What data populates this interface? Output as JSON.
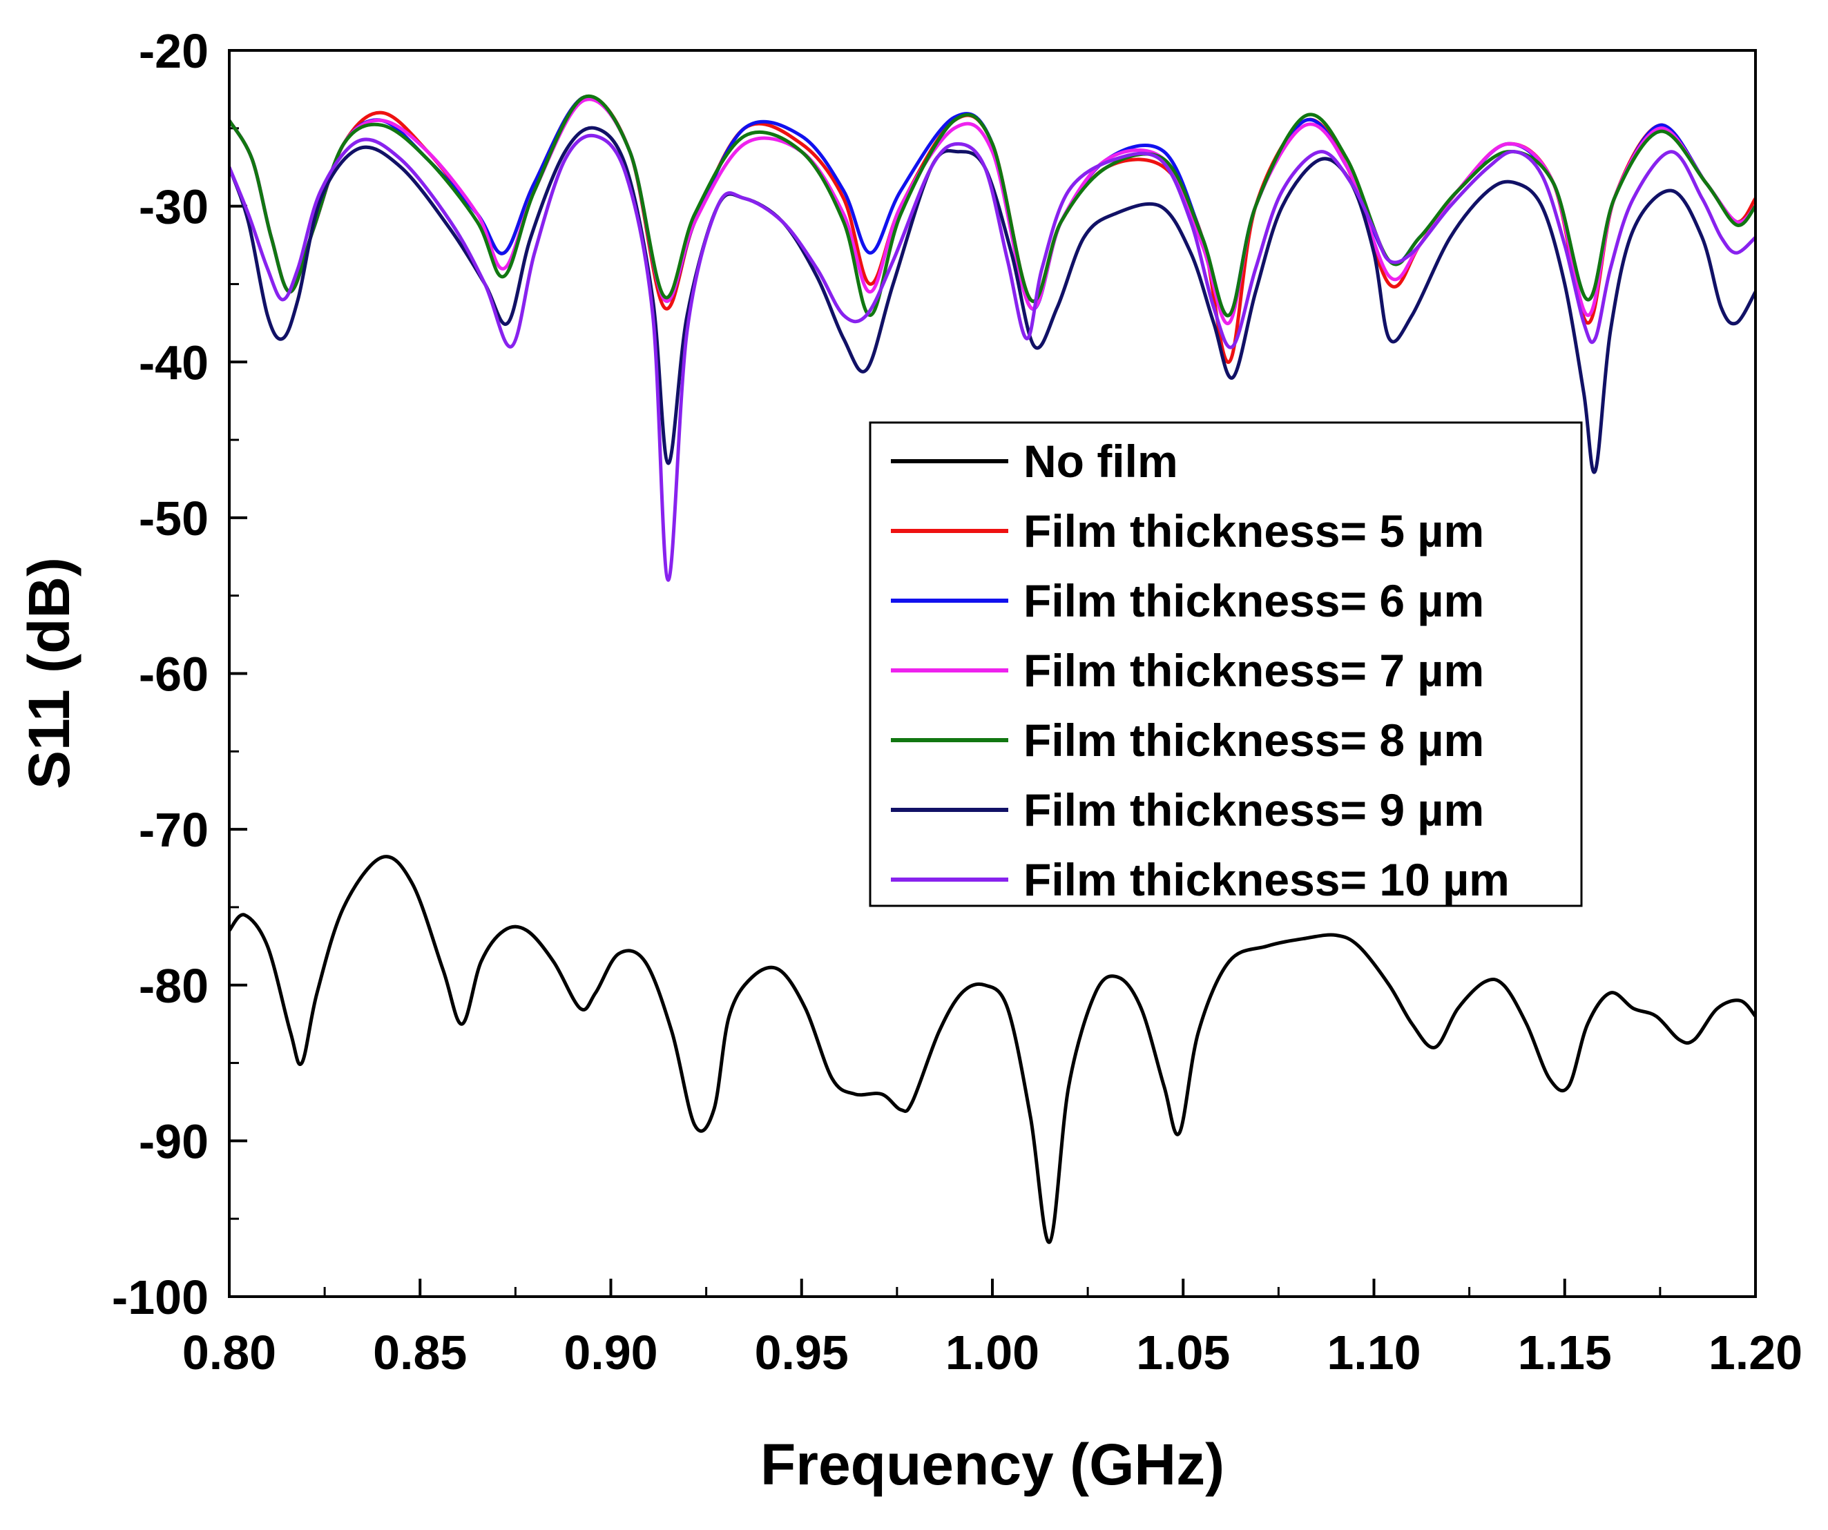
{
  "chart_data": {
    "type": "line",
    "title": "",
    "xlabel": "Frequency (GHz)",
    "ylabel": "S11 (dB)",
    "xlim": [
      0.8,
      1.2
    ],
    "ylim": [
      -100,
      -20
    ],
    "x_ticks": [
      0.8,
      0.85,
      0.9,
      0.95,
      1.0,
      1.05,
      1.1,
      1.15,
      1.2
    ],
    "x_tick_labels": [
      "0.80",
      "0.85",
      "0.90",
      "0.95",
      "1.00",
      "1.05",
      "1.10",
      "1.15",
      "1.20"
    ],
    "y_ticks": [
      -100,
      -90,
      -80,
      -70,
      -60,
      -50,
      -40,
      -30,
      -20
    ],
    "y_tick_labels": [
      "-100",
      "-90",
      "-80",
      "-70",
      "-60",
      "-50",
      "-40",
      "-30",
      "-20"
    ],
    "legend_position": "center-right",
    "series": [
      {
        "name": "No film",
        "color": "#000000",
        "x": [
          0.8,
          0.804,
          0.81,
          0.816,
          0.819,
          0.823,
          0.83,
          0.84,
          0.848,
          0.856,
          0.861,
          0.866,
          0.872,
          0.878,
          0.885,
          0.892,
          0.896,
          0.902,
          0.909,
          0.916,
          0.922,
          0.927,
          0.931,
          0.937,
          0.944,
          0.951,
          0.958,
          0.964,
          0.971,
          0.976,
          0.979,
          0.986,
          0.992,
          0.998,
          1.004,
          1.01,
          1.015,
          1.02,
          1.027,
          1.033,
          1.039,
          1.045,
          1.049,
          1.054,
          1.062,
          1.072,
          1.082,
          1.09,
          1.096,
          1.104,
          1.11,
          1.116,
          1.122,
          1.129,
          1.134,
          1.14,
          1.146,
          1.151,
          1.156,
          1.162,
          1.168,
          1.174,
          1.18,
          1.184,
          1.19,
          1.196,
          1.2
        ],
        "values": [
          -76.5,
          -75.5,
          -77.5,
          -83.0,
          -85.0,
          -80.5,
          -75.0,
          -71.8,
          -73.5,
          -79.0,
          -82.5,
          -78.5,
          -76.5,
          -76.5,
          -78.5,
          -81.5,
          -80.5,
          -78.0,
          -78.5,
          -83.0,
          -89.0,
          -88.0,
          -82.0,
          -79.5,
          -79.0,
          -81.5,
          -86.0,
          -87.0,
          -87.0,
          -88.0,
          -87.5,
          -83.0,
          -80.5,
          -80.0,
          -81.5,
          -88.5,
          -96.5,
          -86.5,
          -80.5,
          -79.5,
          -81.5,
          -86.5,
          -89.5,
          -83.0,
          -78.5,
          -77.5,
          -77.0,
          -76.8,
          -77.5,
          -80.0,
          -82.5,
          -84.0,
          -81.5,
          -79.8,
          -80.0,
          -82.5,
          -86.0,
          -86.5,
          -82.5,
          -80.5,
          -81.5,
          -82.0,
          -83.5,
          -83.5,
          -81.5,
          -81.0,
          -82.0
        ]
      },
      {
        "name": "Film thickness= 5 µm",
        "color": "#ee1111",
        "x": [
          0.8,
          0.806,
          0.811,
          0.816,
          0.822,
          0.83,
          0.84,
          0.852,
          0.865,
          0.872,
          0.88,
          0.893,
          0.905,
          0.914,
          0.922,
          0.935,
          0.95,
          0.961,
          0.968,
          0.976,
          0.99,
          1.0,
          1.01,
          1.018,
          1.03,
          1.045,
          1.055,
          1.062,
          1.069,
          1.082,
          1.093,
          1.104,
          1.112,
          1.122,
          1.135,
          1.147,
          1.156,
          1.163,
          1.175,
          1.187,
          1.195,
          1.2
        ],
        "values": [
          -24.5,
          -27.0,
          -32.0,
          -35.5,
          -31.5,
          -26.0,
          -24.0,
          -26.5,
          -30.5,
          -33.0,
          -28.5,
          -23.0,
          -26.5,
          -36.5,
          -31.0,
          -25.0,
          -26.0,
          -29.5,
          -35.0,
          -30.0,
          -24.5,
          -26.0,
          -36.0,
          -31.0,
          -27.5,
          -27.5,
          -32.0,
          -40.0,
          -30.0,
          -24.5,
          -27.5,
          -35.0,
          -32.5,
          -29.0,
          -26.0,
          -28.5,
          -37.5,
          -29.5,
          -24.8,
          -28.5,
          -31.0,
          -29.5
        ]
      },
      {
        "name": "Film thickness= 6 µm",
        "color": "#1111ee",
        "x": [
          0.8,
          0.806,
          0.811,
          0.816,
          0.822,
          0.83,
          0.84,
          0.852,
          0.865,
          0.872,
          0.88,
          0.893,
          0.905,
          0.914,
          0.922,
          0.935,
          0.95,
          0.961,
          0.968,
          0.976,
          0.99,
          1.0,
          1.01,
          1.018,
          1.03,
          1.045,
          1.055,
          1.062,
          1.069,
          1.082,
          1.093,
          1.104,
          1.112,
          1.122,
          1.135,
          1.147,
          1.156,
          1.163,
          1.175,
          1.187,
          1.195,
          1.2
        ],
        "values": [
          -24.5,
          -27.0,
          -32.0,
          -35.5,
          -31.5,
          -26.0,
          -24.5,
          -27.0,
          -30.5,
          -33.0,
          -28.5,
          -23.0,
          -26.5,
          -36.0,
          -31.0,
          -25.0,
          -25.5,
          -29.0,
          -33.0,
          -29.0,
          -24.3,
          -26.0,
          -36.5,
          -31.0,
          -27.0,
          -26.5,
          -32.0,
          -37.0,
          -30.0,
          -24.5,
          -27.5,
          -33.5,
          -32.0,
          -29.0,
          -26.0,
          -28.5,
          -36.0,
          -29.5,
          -24.8,
          -28.5,
          -31.0,
          -30.0
        ]
      },
      {
        "name": "Film thickness= 7 µm",
        "color": "#ee22ee",
        "x": [
          0.8,
          0.806,
          0.811,
          0.816,
          0.822,
          0.83,
          0.84,
          0.852,
          0.865,
          0.872,
          0.88,
          0.893,
          0.905,
          0.914,
          0.922,
          0.935,
          0.95,
          0.961,
          0.968,
          0.976,
          0.99,
          1.0,
          1.01,
          1.018,
          1.03,
          1.045,
          1.055,
          1.062,
          1.069,
          1.082,
          1.093,
          1.104,
          1.112,
          1.122,
          1.135,
          1.147,
          1.156,
          1.163,
          1.175,
          1.187,
          1.195,
          1.2
        ],
        "values": [
          -24.5,
          -27.0,
          -32.0,
          -35.5,
          -31.5,
          -26.0,
          -24.5,
          -26.5,
          -30.5,
          -34.0,
          -29.0,
          -23.2,
          -26.5,
          -36.0,
          -31.0,
          -26.0,
          -26.5,
          -30.5,
          -35.5,
          -30.0,
          -25.0,
          -26.5,
          -36.5,
          -31.0,
          -27.0,
          -27.0,
          -32.5,
          -37.5,
          -30.0,
          -24.8,
          -27.5,
          -34.5,
          -32.5,
          -29.0,
          -26.0,
          -28.5,
          -37.0,
          -29.5,
          -25.0,
          -28.5,
          -31.0,
          -30.0
        ]
      },
      {
        "name": "Film thickness= 8 µm",
        "color": "#117711",
        "x": [
          0.8,
          0.806,
          0.811,
          0.816,
          0.822,
          0.83,
          0.84,
          0.852,
          0.865,
          0.872,
          0.88,
          0.893,
          0.905,
          0.914,
          0.922,
          0.935,
          0.95,
          0.961,
          0.968,
          0.976,
          0.99,
          1.0,
          1.01,
          1.018,
          1.03,
          1.045,
          1.055,
          1.062,
          1.069,
          1.082,
          1.093,
          1.104,
          1.112,
          1.122,
          1.135,
          1.147,
          1.156,
          1.163,
          1.175,
          1.187,
          1.195,
          1.2
        ],
        "values": [
          -24.5,
          -27.0,
          -32.0,
          -35.5,
          -31.5,
          -26.0,
          -24.8,
          -27.0,
          -31.0,
          -34.5,
          -29.0,
          -23.0,
          -26.5,
          -35.8,
          -30.5,
          -25.5,
          -26.5,
          -31.0,
          -37.0,
          -30.5,
          -24.5,
          -26.0,
          -36.0,
          -31.0,
          -27.5,
          -27.0,
          -32.0,
          -37.0,
          -30.0,
          -24.2,
          -27.0,
          -33.5,
          -32.0,
          -29.0,
          -26.5,
          -28.5,
          -36.0,
          -29.5,
          -25.2,
          -28.5,
          -31.2,
          -30.0
        ]
      },
      {
        "name": "Film thickness= 9 µm",
        "color": "#111166",
        "x": [
          0.8,
          0.805,
          0.81,
          0.814,
          0.818,
          0.824,
          0.834,
          0.845,
          0.858,
          0.867,
          0.873,
          0.879,
          0.888,
          0.896,
          0.904,
          0.911,
          0.915,
          0.92,
          0.928,
          0.935,
          0.945,
          0.954,
          0.961,
          0.967,
          0.974,
          0.984,
          0.991,
          0.998,
          1.005,
          1.011,
          1.017,
          1.024,
          1.032,
          1.044,
          1.052,
          1.058,
          1.063,
          1.069,
          1.076,
          1.086,
          1.094,
          1.1,
          1.104,
          1.11,
          1.12,
          1.13,
          1.137,
          1.144,
          1.15,
          1.155,
          1.158,
          1.162,
          1.168,
          1.178,
          1.186,
          1.191,
          1.195,
          1.2
        ],
        "values": [
          -27.5,
          -31.0,
          -37.0,
          -38.5,
          -36.0,
          -29.5,
          -26.3,
          -27.5,
          -31.5,
          -35.0,
          -37.5,
          -32.0,
          -26.5,
          -25.0,
          -27.5,
          -36.0,
          -46.5,
          -37.0,
          -30.0,
          -29.5,
          -31.0,
          -34.5,
          -38.5,
          -40.5,
          -35.0,
          -27.5,
          -26.5,
          -27.5,
          -33.0,
          -39.0,
          -36.5,
          -32.0,
          -30.5,
          -30.0,
          -33.0,
          -37.5,
          -41.0,
          -35.5,
          -30.0,
          -27.0,
          -28.5,
          -33.0,
          -38.5,
          -37.0,
          -32.0,
          -29.0,
          -28.5,
          -30.0,
          -35.0,
          -42.0,
          -47.0,
          -38.0,
          -31.5,
          -29.0,
          -32.0,
          -36.5,
          -37.5,
          -35.5
        ]
      },
      {
        "name": "Film thickness= 10 µm",
        "color": "#8822ee",
        "x": [
          0.8,
          0.805,
          0.81,
          0.814,
          0.818,
          0.824,
          0.834,
          0.845,
          0.858,
          0.867,
          0.874,
          0.88,
          0.888,
          0.896,
          0.904,
          0.911,
          0.915,
          0.92,
          0.928,
          0.935,
          0.945,
          0.954,
          0.961,
          0.967,
          0.974,
          0.984,
          0.991,
          0.998,
          1.004,
          1.009,
          1.013,
          1.02,
          1.032,
          1.044,
          1.052,
          1.058,
          1.063,
          1.069,
          1.076,
          1.086,
          1.094,
          1.1,
          1.104,
          1.11,
          1.12,
          1.13,
          1.137,
          1.144,
          1.15,
          1.155,
          1.158,
          1.162,
          1.168,
          1.178,
          1.186,
          1.191,
          1.195,
          1.2
        ],
        "values": [
          -27.5,
          -30.5,
          -34.0,
          -36.0,
          -34.0,
          -29.0,
          -25.8,
          -27.0,
          -31.0,
          -35.0,
          -39.0,
          -33.0,
          -27.0,
          -25.5,
          -28.0,
          -37.0,
          -54.0,
          -38.0,
          -30.0,
          -29.5,
          -31.0,
          -34.0,
          -37.0,
          -37.0,
          -33.5,
          -27.5,
          -26.0,
          -27.5,
          -33.5,
          -38.5,
          -34.0,
          -29.0,
          -27.0,
          -27.0,
          -31.0,
          -36.5,
          -39.0,
          -34.0,
          -29.0,
          -26.5,
          -28.5,
          -31.5,
          -33.5,
          -33.0,
          -30.0,
          -27.5,
          -26.5,
          -28.0,
          -32.5,
          -37.5,
          -38.5,
          -34.0,
          -29.5,
          -26.5,
          -29.5,
          -32.0,
          -33.0,
          -32.0
        ]
      }
    ]
  }
}
